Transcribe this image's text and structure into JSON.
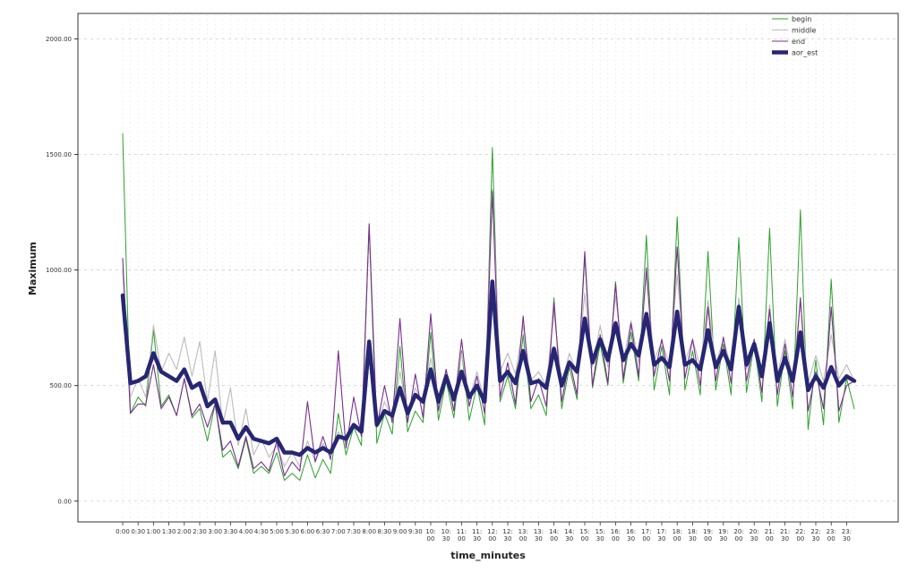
{
  "chart_data": {
    "type": "line",
    "xlabel": "time_minutes",
    "ylabel": "Maximum",
    "ylim": [
      -90,
      2110
    ],
    "yticks": [
      0,
      500,
      1000,
      1500,
      2000
    ],
    "ytick_labels": [
      "0.00",
      "500.00",
      "1000.00",
      "1500.00",
      "2000.00"
    ],
    "grid": true,
    "legend_position": "top-right",
    "x_tick_labels": [
      [
        "0:00"
      ],
      [
        "0:30"
      ],
      [
        "1:00"
      ],
      [
        "1:30"
      ],
      [
        "2:00"
      ],
      [
        "2:30"
      ],
      [
        "3:00"
      ],
      [
        "3:30"
      ],
      [
        "4:00"
      ],
      [
        "4:30"
      ],
      [
        "5:00"
      ],
      [
        "5:30"
      ],
      [
        "6:00"
      ],
      [
        "6:30"
      ],
      [
        "7:00"
      ],
      [
        "7:30"
      ],
      [
        "8:00"
      ],
      [
        "8:30"
      ],
      [
        "9:00"
      ],
      [
        "9:30"
      ],
      [
        "10:",
        "00"
      ],
      [
        "10:",
        "30"
      ],
      [
        "11:",
        "00"
      ],
      [
        "11:",
        "30"
      ],
      [
        "12:",
        "00"
      ],
      [
        "12:",
        "30"
      ],
      [
        "13:",
        "00"
      ],
      [
        "13:",
        "30"
      ],
      [
        "14:",
        "00"
      ],
      [
        "14:",
        "30"
      ],
      [
        "15:",
        "00"
      ],
      [
        "15:",
        "30"
      ],
      [
        "16:",
        "00"
      ],
      [
        "16:",
        "30"
      ],
      [
        "17:",
        "00"
      ],
      [
        "17:",
        "30"
      ],
      [
        "18:",
        "00"
      ],
      [
        "18:",
        "30"
      ],
      [
        "19:",
        "00"
      ],
      [
        "19:",
        "30"
      ],
      [
        "20:",
        "00"
      ],
      [
        "20:",
        "30"
      ],
      [
        "21:",
        "00"
      ],
      [
        "21:",
        "30"
      ],
      [
        "22:",
        "00"
      ],
      [
        "22:",
        "30"
      ],
      [
        "23:",
        "00"
      ],
      [
        "23:",
        "30"
      ]
    ],
    "series": [
      {
        "name": "begin",
        "color": "#2ca02c",
        "width": 1,
        "values": [
          1590,
          380,
          450,
          410,
          740,
          410,
          460,
          370,
          530,
          360,
          400,
          260,
          420,
          190,
          220,
          140,
          270,
          120,
          150,
          120,
          210,
          90,
          120,
          90,
          200,
          100,
          180,
          120,
          380,
          200,
          320,
          240,
          1190,
          250,
          380,
          290,
          670,
          300,
          390,
          340,
          730,
          350,
          520,
          360,
          650,
          350,
          500,
          330,
          1530,
          430,
          540,
          400,
          720,
          400,
          460,
          370,
          880,
          400,
          580,
          440,
          1060,
          490,
          680,
          500,
          950,
          510,
          730,
          520,
          1150,
          480,
          670,
          460,
          1230,
          480,
          650,
          460,
          1080,
          480,
          680,
          460,
          1140,
          470,
          680,
          430,
          1180,
          410,
          650,
          400,
          1260,
          310,
          610,
          330,
          960,
          340,
          530,
          400
        ]
      },
      {
        "name": "middle",
        "color": "#bbbbbb",
        "width": 1.1,
        "values": [
          1000,
          450,
          530,
          450,
          760,
          560,
          640,
          570,
          710,
          540,
          690,
          430,
          650,
          330,
          490,
          240,
          400,
          200,
          270,
          190,
          240,
          150,
          210,
          150,
          260,
          170,
          250,
          200,
          300,
          250,
          320,
          300,
          700,
          320,
          430,
          360,
          560,
          380,
          490,
          420,
          620,
          420,
          570,
          440,
          640,
          440,
          560,
          430,
          1350,
          560,
          640,
          550,
          760,
          520,
          560,
          500,
          820,
          510,
          640,
          550,
          900,
          580,
          760,
          580,
          890,
          600,
          780,
          600,
          980,
          610,
          690,
          590,
          980,
          600,
          700,
          580,
          870,
          590,
          700,
          580,
          880,
          570,
          700,
          540,
          850,
          540,
          700,
          520,
          860,
          510,
          630,
          520,
          720,
          530,
          590,
          520
        ]
      },
      {
        "name": "end",
        "color": "#7b2d8e",
        "width": 1.1,
        "values": [
          1050,
          380,
          420,
          420,
          590,
          400,
          450,
          370,
          530,
          370,
          420,
          320,
          420,
          220,
          260,
          150,
          280,
          140,
          170,
          130,
          260,
          110,
          170,
          130,
          430,
          170,
          280,
          180,
          650,
          230,
          450,
          280,
          1200,
          320,
          500,
          340,
          790,
          340,
          550,
          360,
          810,
          390,
          570,
          390,
          700,
          410,
          540,
          380,
          1340,
          450,
          600,
          420,
          800,
          430,
          530,
          410,
          860,
          430,
          610,
          460,
          1080,
          500,
          720,
          510,
          940,
          530,
          770,
          540,
          1010,
          540,
          700,
          520,
          1100,
          530,
          700,
          500,
          840,
          520,
          710,
          510,
          850,
          520,
          700,
          470,
          830,
          460,
          680,
          450,
          880,
          390,
          560,
          400,
          840,
          390,
          500,
          520
        ]
      },
      {
        "name": "aor_est",
        "color": "#262673",
        "width": 4.5,
        "values": [
          890,
          510,
          520,
          540,
          640,
          560,
          540,
          520,
          570,
          490,
          510,
          410,
          440,
          340,
          340,
          270,
          320,
          270,
          260,
          250,
          270,
          210,
          210,
          200,
          230,
          210,
          230,
          210,
          280,
          270,
          330,
          300,
          690,
          330,
          390,
          370,
          490,
          380,
          460,
          430,
          570,
          430,
          540,
          440,
          560,
          450,
          500,
          430,
          950,
          520,
          560,
          510,
          650,
          510,
          520,
          490,
          660,
          500,
          600,
          560,
          790,
          600,
          700,
          610,
          770,
          610,
          680,
          630,
          810,
          590,
          620,
          580,
          820,
          590,
          610,
          570,
          740,
          580,
          650,
          570,
          840,
          590,
          680,
          540,
          770,
          520,
          620,
          520,
          730,
          480,
          540,
          490,
          580,
          500,
          540,
          520
        ]
      }
    ]
  }
}
